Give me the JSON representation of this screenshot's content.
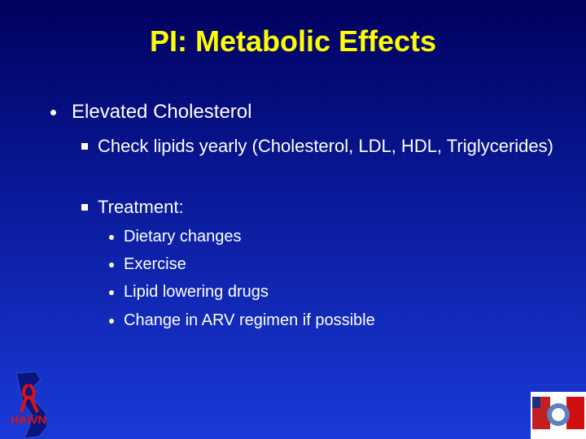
{
  "title": "PI: Metabolic Effects",
  "bullets": [
    {
      "text": "Elevated Cholesterol",
      "items": [
        {
          "text": "Check lipids yearly (Cholesterol, LDL, HDL, Triglycerides)"
        },
        {
          "text": "Treatment:",
          "items": [
            "Dietary changes",
            "Exercise",
            "Lipid lowering drugs",
            "Change in ARV regimen if possible"
          ]
        }
      ]
    }
  ],
  "logo_left": {
    "label": "HAIVN"
  }
}
